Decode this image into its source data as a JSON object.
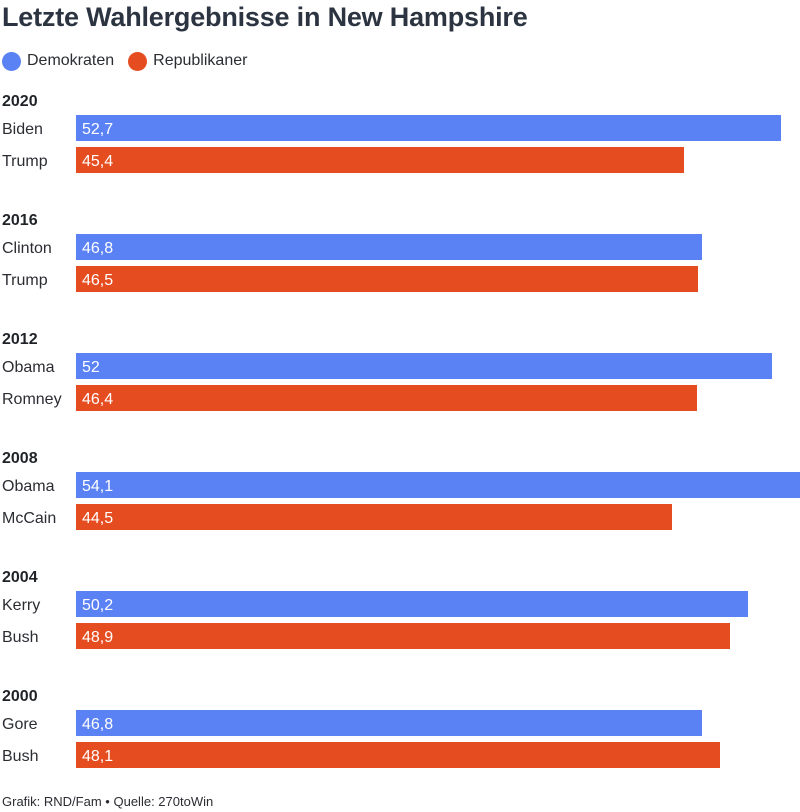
{
  "chart_data": {
    "type": "bar",
    "orientation": "horizontal",
    "title": "Letzte Wahlergebnisse in New Hampshire",
    "legend": [
      {
        "label": "Demokraten",
        "color": "#5b82f4"
      },
      {
        "label": "Republikaner",
        "color": "#e54d20"
      }
    ],
    "groups": [
      {
        "year": "2020",
        "bars": [
          {
            "candidate": "Biden",
            "party": "Demokraten",
            "value": 52.7,
            "label": "52,7"
          },
          {
            "candidate": "Trump",
            "party": "Republikaner",
            "value": 45.4,
            "label": "45,4"
          }
        ]
      },
      {
        "year": "2016",
        "bars": [
          {
            "candidate": "Clinton",
            "party": "Demokraten",
            "value": 46.8,
            "label": "46,8"
          },
          {
            "candidate": "Trump",
            "party": "Republikaner",
            "value": 46.5,
            "label": "46,5"
          }
        ]
      },
      {
        "year": "2012",
        "bars": [
          {
            "candidate": "Obama",
            "party": "Demokraten",
            "value": 52,
            "label": "52"
          },
          {
            "candidate": "Romney",
            "party": "Republikaner",
            "value": 46.4,
            "label": "46,4"
          }
        ]
      },
      {
        "year": "2008",
        "bars": [
          {
            "candidate": "Obama",
            "party": "Demokraten",
            "value": 54.1,
            "label": "54,1"
          },
          {
            "candidate": "McCain",
            "party": "Republikaner",
            "value": 44.5,
            "label": "44,5"
          }
        ]
      },
      {
        "year": "2004",
        "bars": [
          {
            "candidate": "Kerry",
            "party": "Demokraten",
            "value": 50.2,
            "label": "50,2"
          },
          {
            "candidate": "Bush",
            "party": "Republikaner",
            "value": 48.9,
            "label": "48,9"
          }
        ]
      },
      {
        "year": "2000",
        "bars": [
          {
            "candidate": "Gore",
            "party": "Demokraten",
            "value": 46.8,
            "label": "46,8"
          },
          {
            "candidate": "Bush",
            "party": "Republikaner",
            "value": 48.1,
            "label": "48,1"
          }
        ]
      }
    ],
    "xlim": [
      0,
      54.1
    ],
    "grid": false
  },
  "footer": {
    "credit": "Grafik: RND/Fam",
    "separator": "•",
    "source": "Quelle: 270toWin"
  }
}
